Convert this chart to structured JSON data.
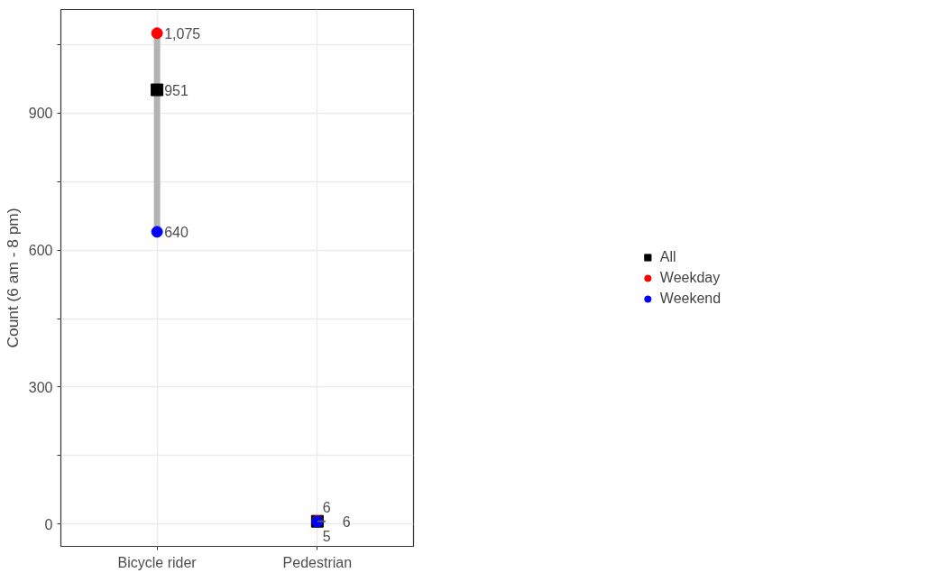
{
  "chart_data": {
    "type": "scatter",
    "ylabel": "Count (6 am - 8 pm)",
    "categories": [
      "Bicycle rider",
      "Pedestrian"
    ],
    "series": [
      {
        "name": "All",
        "color": "#000000",
        "marker": "square",
        "values": [
          951,
          6
        ],
        "value_labels": [
          "951",
          "6"
        ]
      },
      {
        "name": "Weekday",
        "color": "#ff0000",
        "marker": "circle",
        "values": [
          1075,
          6
        ],
        "value_labels": [
          "1,075",
          "6"
        ]
      },
      {
        "name": "Weekend",
        "color": "#0000ff",
        "marker": "circle",
        "values": [
          640,
          5
        ],
        "value_labels": [
          "640",
          "5"
        ]
      }
    ],
    "ylim": [
      -49,
      1127
    ],
    "yticks": [
      0,
      {
        "value": 150,
        "label": null
      },
      300,
      {
        "value": 450,
        "label": null
      },
      600,
      {
        "value": 750,
        "label": null
      },
      900,
      {
        "value": 1050,
        "label": null
      }
    ],
    "grid": true,
    "legend": "right"
  }
}
